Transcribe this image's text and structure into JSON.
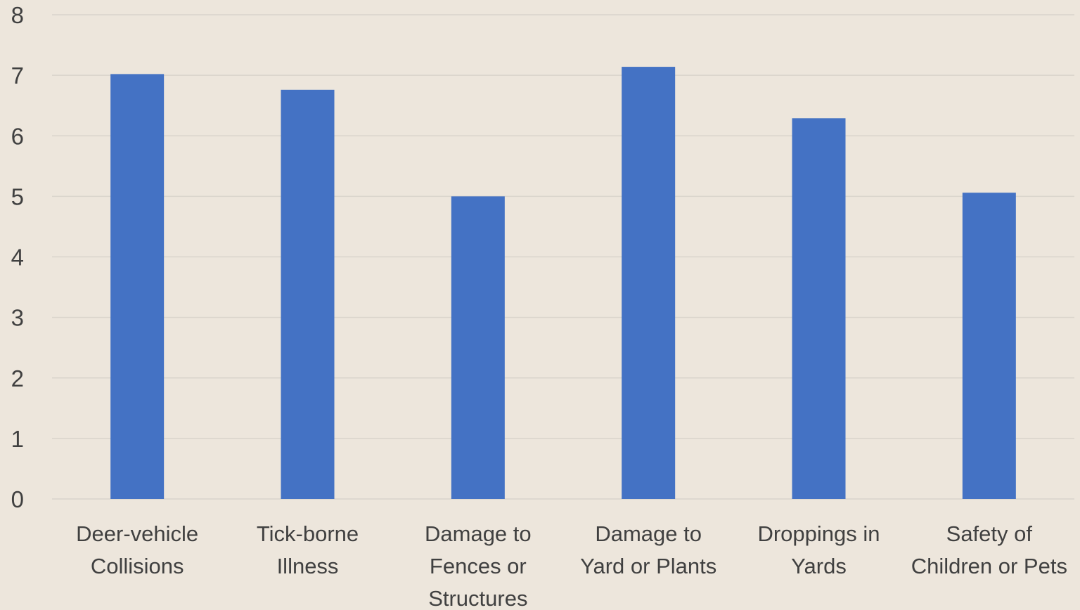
{
  "chart_data": {
    "type": "bar",
    "title": "",
    "xlabel": "",
    "ylabel": "",
    "categories": [
      [
        "Deer-vehicle",
        "Collisions"
      ],
      [
        "Tick-borne",
        "Illness"
      ],
      [
        "Damage to",
        "Fences or",
        "Structures"
      ],
      [
        "Damage to",
        "Yard or Plants"
      ],
      [
        "Droppings in",
        "Yards"
      ],
      [
        "Safety of",
        "Children or Pets"
      ]
    ],
    "values": [
      7.02,
      6.76,
      5.0,
      7.14,
      6.29,
      5.06
    ],
    "ylim": [
      0,
      8
    ],
    "yticks": [
      "0",
      "1",
      "2",
      "3",
      "4",
      "5",
      "6",
      "7",
      "8"
    ],
    "grid": true,
    "legend": "none",
    "colors": {
      "bar": "#4472C4",
      "background": "#EDE6DC",
      "grid": "#D9D4CB",
      "text": "#404040"
    }
  }
}
